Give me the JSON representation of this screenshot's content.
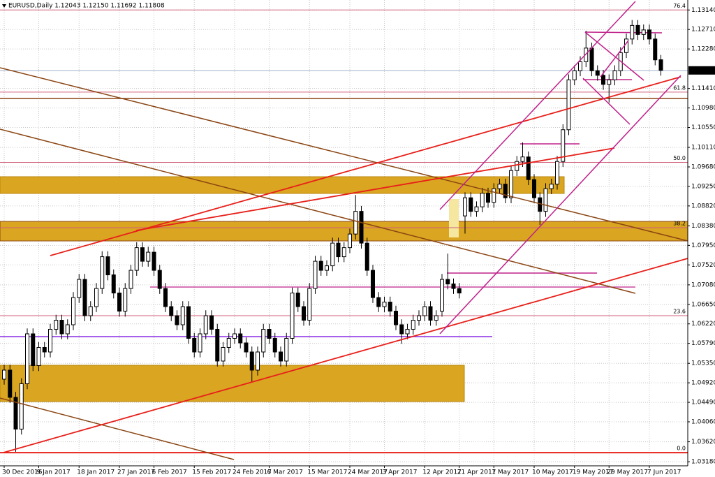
{
  "chart_data": {
    "type": "candlestick",
    "title": "EURUSD,Daily  1.12043 1.12150 1.11692 1.11808",
    "up_color": "#ffffff",
    "down_color": "#000000",
    "grid": true,
    "ylim": [
      1.0309,
      1.1336
    ],
    "yticks": [
      {
        "value": 1.1314,
        "label": "1.13140"
      },
      {
        "value": 1.1271,
        "label": "1.12710"
      },
      {
        "value": 1.1228,
        "label": "1.12280"
      },
      {
        "value": 1.1141,
        "label": "1.11410"
      },
      {
        "value": 1.1098,
        "label": "1.10980"
      },
      {
        "value": 1.1055,
        "label": "1.10550"
      },
      {
        "value": 1.1011,
        "label": "1.10110"
      },
      {
        "value": 1.0968,
        "label": "1.09680"
      },
      {
        "value": 1.0925,
        "label": "1.09250"
      },
      {
        "value": 1.0882,
        "label": "1.08820"
      },
      {
        "value": 1.0838,
        "label": "1.08380"
      },
      {
        "value": 1.0795,
        "label": "1.07950"
      },
      {
        "value": 1.0752,
        "label": "1.07520"
      },
      {
        "value": 1.0708,
        "label": "1.07080"
      },
      {
        "value": 1.0665,
        "label": "1.06650"
      },
      {
        "value": 1.0622,
        "label": "1.06220"
      },
      {
        "value": 1.0579,
        "label": "1.05790"
      },
      {
        "value": 1.0535,
        "label": "1.05350"
      },
      {
        "value": 1.0492,
        "label": "1.04920"
      },
      {
        "value": 1.0449,
        "label": "1.04490"
      },
      {
        "value": 1.0406,
        "label": "1.04060"
      },
      {
        "value": 1.0362,
        "label": "1.03620"
      },
      {
        "value": 1.0318,
        "label": "1.03180"
      }
    ],
    "last_price": 1.11808,
    "fib_levels": [
      {
        "label": "76.4",
        "price": 1.1314
      },
      {
        "label": "61.8",
        "price": 1.1133
      },
      {
        "label": "50.0",
        "price": 1.0978
      },
      {
        "label": "38.2",
        "price": 1.0834
      },
      {
        "label": "23.6",
        "price": 1.064
      },
      {
        "label": "0.0",
        "price": 1.0338
      }
    ],
    "categories": [
      "30 Dec 2016",
      null,
      null,
      null,
      null,
      null,
      "9 Jan 2017",
      null,
      null,
      null,
      null,
      null,
      null,
      "18 Jan 2017",
      null,
      null,
      null,
      null,
      null,
      null,
      "27 Jan 2017",
      null,
      null,
      null,
      null,
      null,
      "6 Feb 2017",
      null,
      null,
      null,
      null,
      null,
      null,
      "15 Feb 2017",
      null,
      null,
      null,
      null,
      null,
      null,
      "24 Feb 2017",
      null,
      null,
      null,
      null,
      null,
      "6 Mar 2017",
      null,
      null,
      null,
      null,
      null,
      null,
      "15 Mar 2017",
      null,
      null,
      null,
      null,
      null,
      null,
      "24 Mar 2017",
      null,
      null,
      null,
      null,
      null,
      "3 Apr 2017",
      null,
      null,
      null,
      null,
      null,
      null,
      "12 Apr 2017",
      null,
      null,
      null,
      null,
      null,
      "21 Apr 2017",
      null,
      null,
      null,
      null,
      null,
      "1 May 2017",
      null,
      null,
      null,
      null,
      null,
      null,
      "10 May 2017",
      null,
      null,
      null,
      null,
      null,
      null,
      "19 May 2017",
      null,
      null,
      null,
      null,
      null,
      "29 May 2017",
      null,
      null,
      null,
      null,
      null,
      null,
      "7 Jun 2017",
      null,
      null
    ],
    "open": [
      1.05,
      1.052,
      1.046,
      1.039,
      1.049,
      1.06,
      1.053,
      1.057,
      1.056,
      1.061,
      1.063,
      1.06,
      1.062,
      1.068,
      1.072,
      1.064,
      1.066,
      1.07,
      1.077,
      1.073,
      1.069,
      1.065,
      1.07,
      1.074,
      1.079,
      1.076,
      1.078,
      1.074,
      1.07,
      1.066,
      1.064,
      1.062,
      1.066,
      1.059,
      1.056,
      1.06,
      1.064,
      1.061,
      1.054,
      1.057,
      1.059,
      1.06,
      1.058,
      1.056,
      1.052,
      1.056,
      1.061,
      1.059,
      1.056,
      1.054,
      1.059,
      1.069,
      1.066,
      1.063,
      1.07,
      1.076,
      1.074,
      1.075,
      1.08,
      1.077,
      1.079,
      1.082,
      1.087,
      1.08,
      1.074,
      1.068,
      1.066,
      1.067,
      1.065,
      1.062,
      1.06,
      1.061,
      1.063,
      1.064,
      1.066,
      1.063,
      1.065,
      1.072,
      1.071,
      1.07,
      1.086,
      1.09,
      1.087,
      1.088,
      1.091,
      1.089,
      1.092,
      1.093,
      1.09,
      1.096,
      1.098,
      1.099,
      1.094,
      1.09,
      1.087,
      1.092,
      1.093,
      1.098,
      1.105,
      1.116,
      1.118,
      1.12,
      1.123,
      1.118,
      1.117,
      1.115,
      1.116,
      1.118,
      1.122,
      1.125,
      1.128,
      1.126,
      1.127,
      1.125,
      1.12043
    ],
    "high": [
      1.0532,
      1.0532,
      1.0472,
      1.0502,
      1.0612,
      1.0612,
      1.0582,
      1.0582,
      1.0622,
      1.0642,
      1.0642,
      1.0632,
      1.0692,
      1.0732,
      1.0732,
      1.0672,
      1.0712,
      1.0782,
      1.0782,
      1.0742,
      1.0702,
      1.0712,
      1.0752,
      1.0802,
      1.0802,
      1.0792,
      1.0792,
      1.0752,
      1.0712,
      1.0672,
      1.0652,
      1.0672,
      1.0672,
      1.0602,
      1.0612,
      1.0652,
      1.0652,
      1.0622,
      1.0582,
      1.0602,
      1.0612,
      1.0612,
      1.0592,
      1.0572,
      1.0572,
      1.0622,
      1.0622,
      1.0602,
      1.0572,
      1.0602,
      1.0702,
      1.0702,
      1.0672,
      1.0712,
      1.0772,
      1.0772,
      1.0762,
      1.0812,
      1.0812,
      1.0802,
      1.0832,
      1.0906,
      1.0882,
      1.0812,
      1.0752,
      1.0692,
      1.0682,
      1.0682,
      1.0662,
      1.0632,
      1.0622,
      1.0642,
      1.0652,
      1.0672,
      1.0672,
      1.0652,
      1.0732,
      1.0777,
      1.0722,
      1.0712,
      1.0912,
      1.0912,
      1.0892,
      1.0922,
      1.0922,
      1.0932,
      1.0942,
      1.0942,
      1.0972,
      1.0992,
      1.1022,
      1.1002,
      1.0952,
      1.0912,
      1.0932,
      1.0942,
      1.0992,
      1.1062,
      1.1172,
      1.1192,
      1.1212,
      1.1268,
      1.1242,
      1.1192,
      1.1182,
      1.1172,
      1.1192,
      1.1232,
      1.1262,
      1.1292,
      1.1292,
      1.1282,
      1.1282,
      1.1262,
      1.1215
    ],
    "low": [
      1.0488,
      1.0448,
      1.034,
      1.0378,
      1.0478,
      1.0518,
      1.0518,
      1.0548,
      1.0548,
      1.0598,
      1.0588,
      1.0588,
      1.0608,
      1.0668,
      1.0628,
      1.0628,
      1.0648,
      1.0688,
      1.0718,
      1.0678,
      1.0638,
      1.0638,
      1.0688,
      1.0728,
      1.0748,
      1.0748,
      1.0728,
      1.0688,
      1.0648,
      1.0628,
      1.0608,
      1.0608,
      1.0578,
      1.0548,
      1.0548,
      1.0588,
      1.0598,
      1.0528,
      1.0528,
      1.0558,
      1.0578,
      1.0568,
      1.0548,
      1.0494,
      1.0508,
      1.0548,
      1.0578,
      1.0548,
      1.0528,
      1.0528,
      1.0578,
      1.0648,
      1.0618,
      1.0618,
      1.0688,
      1.0728,
      1.0728,
      1.0738,
      1.0758,
      1.0758,
      1.0778,
      1.0808,
      1.0788,
      1.0728,
      1.0668,
      1.0648,
      1.0648,
      1.0638,
      1.0608,
      1.0578,
      1.0588,
      1.0598,
      1.0618,
      1.0628,
      1.0618,
      1.0618,
      1.0638,
      1.0698,
      1.0688,
      1.0678,
      1.0821,
      1.0858,
      1.0858,
      1.0868,
      1.0878,
      1.0878,
      1.0908,
      1.0888,
      1.0888,
      1.0948,
      1.0968,
      1.0928,
      1.0888,
      1.084,
      1.0858,
      1.0908,
      1.0918,
      1.0968,
      1.1038,
      1.1148,
      1.1168,
      1.1188,
      1.1168,
      1.1158,
      1.1138,
      1.111,
      1.1148,
      1.1168,
      1.1208,
      1.1238,
      1.1248,
      1.1248,
      1.1238,
      1.1192,
      1.11692
    ],
    "close": [
      1.052,
      1.046,
      1.039,
      1.049,
      1.06,
      1.053,
      1.057,
      1.056,
      1.061,
      1.063,
      1.06,
      1.062,
      1.068,
      1.072,
      1.064,
      1.066,
      1.07,
      1.077,
      1.073,
      1.069,
      1.065,
      1.07,
      1.074,
      1.079,
      1.076,
      1.078,
      1.074,
      1.07,
      1.066,
      1.064,
      1.062,
      1.066,
      1.059,
      1.056,
      1.06,
      1.064,
      1.061,
      1.054,
      1.057,
      1.059,
      1.06,
      1.058,
      1.056,
      1.052,
      1.056,
      1.061,
      1.059,
      1.056,
      1.054,
      1.059,
      1.069,
      1.066,
      1.063,
      1.07,
      1.076,
      1.074,
      1.075,
      1.08,
      1.077,
      1.079,
      1.082,
      1.087,
      1.08,
      1.074,
      1.068,
      1.066,
      1.067,
      1.065,
      1.062,
      1.06,
      1.061,
      1.063,
      1.064,
      1.066,
      1.063,
      1.064,
      1.072,
      1.071,
      1.07,
      1.069,
      1.09,
      1.087,
      1.088,
      1.091,
      1.089,
      1.092,
      1.093,
      1.09,
      1.096,
      1.098,
      1.099,
      1.094,
      1.09,
      1.087,
      1.092,
      1.093,
      1.098,
      1.105,
      1.116,
      1.118,
      1.12,
      1.123,
      1.118,
      1.117,
      1.115,
      1.116,
      1.118,
      1.122,
      1.125,
      1.128,
      1.126,
      1.127,
      1.125,
      1.1204,
      1.11808
    ]
  }
}
